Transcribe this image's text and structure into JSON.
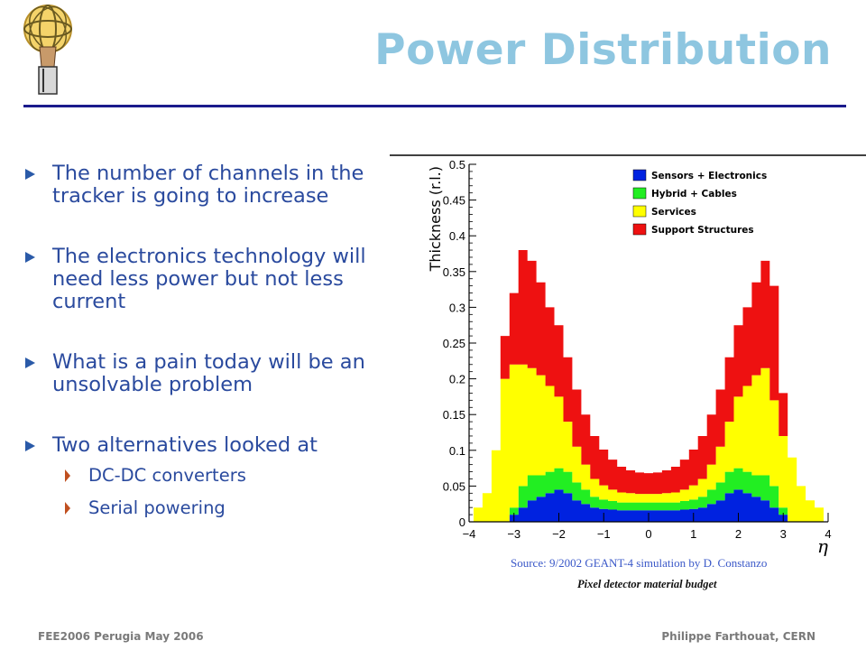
{
  "slide": {
    "title": "Power Distribution",
    "bullets": [
      {
        "text": "The number of channels in the tracker is going to increase"
      },
      {
        "text": "The electronics technology will need less power but not less current"
      },
      {
        "text": "What is a pain today will be an unsolvable problem"
      },
      {
        "text": "Two alternatives looked at"
      }
    ],
    "sub_bullets": [
      {
        "text": "DC-DC converters"
      },
      {
        "text": "Serial powering"
      }
    ],
    "source": "Source: 9/2002 GEANT-4 simulation by D. Constanzo",
    "caption": "Pixel detector material budget",
    "footer_left": "FEE2006 Perugia May 2006",
    "footer_right": "Philippe Farthouat, CERN",
    "colors": {
      "title": "#8ec6e0",
      "rule": "#1a1a8c",
      "bullet_text": "#2a4a9e",
      "source_text": "#3a58c8"
    }
  },
  "chart_data": {
    "type": "area",
    "stacked": true,
    "ylabel": "Thickness (r.l.)",
    "xlabel": "η",
    "xlim": [
      -4,
      4
    ],
    "ylim": [
      0,
      0.5
    ],
    "x_ticks": [
      "−4",
      "−3",
      "−2",
      "−1",
      "0",
      "1",
      "2",
      "3",
      "4"
    ],
    "y_ticks": [
      "0",
      "0.05",
      "0.1",
      "0.15",
      "0.2",
      "0.25",
      "0.3",
      "0.35",
      "0.4",
      "0.45",
      "0.5"
    ],
    "legend_position": "top-center",
    "x": [
      -4.0,
      -3.8,
      -3.6,
      -3.4,
      -3.2,
      -3.0,
      -2.8,
      -2.6,
      -2.4,
      -2.2,
      -2.0,
      -1.8,
      -1.6,
      -1.4,
      -1.2,
      -1.0,
      -0.8,
      -0.6,
      -0.4,
      -0.2,
      0.0,
      0.2,
      0.4,
      0.6,
      0.8,
      1.0,
      1.2,
      1.4,
      1.6,
      1.8,
      2.0,
      2.2,
      2.4,
      2.6,
      2.8,
      3.0,
      3.2,
      3.4,
      3.6,
      3.8,
      4.0
    ],
    "series": [
      {
        "name": "Sensors + Electronics",
        "color": "#0022e0",
        "values": [
          0,
          0,
          0,
          0,
          0,
          0.01,
          0.02,
          0.03,
          0.035,
          0.04,
          0.045,
          0.04,
          0.03,
          0.025,
          0.02,
          0.018,
          0.017,
          0.016,
          0.016,
          0.016,
          0.016,
          0.016,
          0.016,
          0.016,
          0.017,
          0.018,
          0.02,
          0.025,
          0.03,
          0.04,
          0.045,
          0.04,
          0.035,
          0.03,
          0.02,
          0.01,
          0,
          0,
          0,
          0,
          0
        ]
      },
      {
        "name": "Hybrid + Cables",
        "color": "#22ee22",
        "values": [
          0,
          0,
          0,
          0,
          0,
          0.01,
          0.03,
          0.035,
          0.03,
          0.03,
          0.03,
          0.03,
          0.025,
          0.02,
          0.015,
          0.013,
          0.012,
          0.011,
          0.011,
          0.011,
          0.011,
          0.011,
          0.011,
          0.011,
          0.012,
          0.013,
          0.015,
          0.02,
          0.025,
          0.03,
          0.03,
          0.03,
          0.03,
          0.035,
          0.03,
          0.01,
          0,
          0,
          0,
          0,
          0
        ]
      },
      {
        "name": "Services",
        "color": "#ffff00",
        "values": [
          0,
          0.02,
          0.04,
          0.1,
          0.2,
          0.2,
          0.17,
          0.15,
          0.14,
          0.12,
          0.1,
          0.07,
          0.05,
          0.035,
          0.025,
          0.02,
          0.016,
          0.014,
          0.013,
          0.012,
          0.012,
          0.012,
          0.013,
          0.014,
          0.016,
          0.02,
          0.025,
          0.035,
          0.05,
          0.07,
          0.1,
          0.12,
          0.14,
          0.15,
          0.12,
          0.1,
          0.09,
          0.05,
          0.03,
          0.02,
          0
        ]
      },
      {
        "name": "Support Structures",
        "color": "#ee1111",
        "values": [
          0,
          0,
          0,
          0,
          0.06,
          0.1,
          0.16,
          0.15,
          0.13,
          0.11,
          0.1,
          0.09,
          0.08,
          0.07,
          0.06,
          0.05,
          0.042,
          0.036,
          0.032,
          0.03,
          0.029,
          0.03,
          0.032,
          0.036,
          0.042,
          0.05,
          0.06,
          0.07,
          0.08,
          0.09,
          0.1,
          0.11,
          0.13,
          0.15,
          0.16,
          0.06,
          0,
          0,
          0,
          0,
          0
        ]
      }
    ]
  }
}
